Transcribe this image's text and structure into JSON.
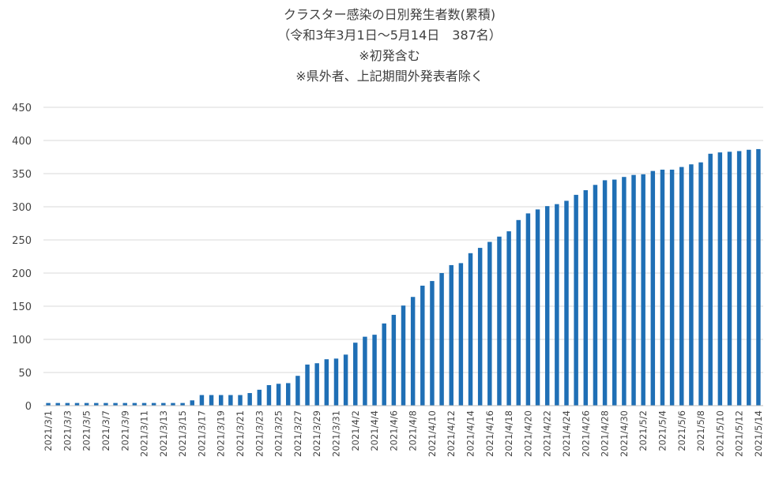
{
  "chart_data": {
    "type": "bar",
    "title": "クラスター感染の日別発生者数(累積)",
    "subtitle": [
      "（令和3年3月1日～5月14日　387名）",
      "※初発含む",
      "※県外者、上記期間外発表者除く"
    ],
    "xlabel": "",
    "ylabel": "",
    "ylim": [
      0,
      450
    ],
    "yticks": [
      0,
      50,
      100,
      150,
      200,
      250,
      300,
      350,
      400,
      450
    ],
    "grid": true,
    "legend": "none",
    "colors": {
      "bar": "#1f6fb5",
      "grid": "#d9d9d9",
      "axis": "#bfbfbf"
    },
    "categories": [
      "2021/3/1",
      "2021/3/2",
      "2021/3/3",
      "2021/3/4",
      "2021/3/5",
      "2021/3/6",
      "2021/3/7",
      "2021/3/8",
      "2021/3/9",
      "2021/3/10",
      "2021/3/11",
      "2021/3/12",
      "2021/3/13",
      "2021/3/14",
      "2021/3/15",
      "2021/3/16",
      "2021/3/17",
      "2021/3/18",
      "2021/3/19",
      "2021/3/20",
      "2021/3/21",
      "2021/3/22",
      "2021/3/23",
      "2021/3/24",
      "2021/3/25",
      "2021/3/26",
      "2021/3/27",
      "2021/3/28",
      "2021/3/29",
      "2021/3/30",
      "2021/3/31",
      "2021/4/1",
      "2021/4/2",
      "2021/4/3",
      "2021/4/4",
      "2021/4/5",
      "2021/4/6",
      "2021/4/7",
      "2021/4/8",
      "2021/4/9",
      "2021/4/10",
      "2021/4/11",
      "2021/4/12",
      "2021/4/13",
      "2021/4/14",
      "2021/4/15",
      "2021/4/16",
      "2021/4/17",
      "2021/4/18",
      "2021/4/19",
      "2021/4/20",
      "2021/4/21",
      "2021/4/22",
      "2021/4/23",
      "2021/4/24",
      "2021/4/25",
      "2021/4/26",
      "2021/4/27",
      "2021/4/28",
      "2021/4/29",
      "2021/4/30",
      "2021/5/1",
      "2021/5/2",
      "2021/5/3",
      "2021/5/4",
      "2021/5/5",
      "2021/5/6",
      "2021/5/7",
      "2021/5/8",
      "2021/5/9",
      "2021/5/10",
      "2021/5/11",
      "2021/5/12",
      "2021/5/13",
      "2021/5/14"
    ],
    "tick_labels": [
      "2021/3/1",
      "2021/3/3",
      "2021/3/5",
      "2021/3/7",
      "2021/3/9",
      "2021/3/11",
      "2021/3/13",
      "2021/3/15",
      "2021/3/17",
      "2021/3/19",
      "2021/3/21",
      "2021/3/23",
      "2021/3/25",
      "2021/3/27",
      "2021/3/29",
      "2021/3/31",
      "2021/4/2",
      "2021/4/4",
      "2021/4/6",
      "2021/4/8",
      "2021/4/10",
      "2021/4/12",
      "2021/4/14",
      "2021/4/16",
      "2021/4/18",
      "2021/4/20",
      "2021/4/22",
      "2021/4/24",
      "2021/4/26",
      "2021/4/28",
      "2021/4/30",
      "2021/5/2",
      "2021/5/4",
      "2021/5/6",
      "2021/5/8",
      "2021/5/10",
      "2021/5/12",
      "2021/5/14"
    ],
    "values": [
      4,
      4,
      4,
      4,
      4,
      4,
      4,
      4,
      4,
      4,
      4,
      4,
      4,
      4,
      4,
      8,
      16,
      16,
      16,
      16,
      16,
      19,
      24,
      31,
      33,
      34,
      45,
      62,
      64,
      70,
      71,
      77,
      95,
      104,
      107,
      124,
      137,
      151,
      164,
      181,
      188,
      200,
      212,
      215,
      230,
      238,
      247,
      255,
      263,
      280,
      290,
      296,
      301,
      304,
      309,
      318,
      325,
      333,
      340,
      341,
      345,
      348,
      349,
      354,
      356,
      356,
      360,
      364,
      367,
      380,
      382,
      383,
      384,
      386,
      387
    ]
  }
}
